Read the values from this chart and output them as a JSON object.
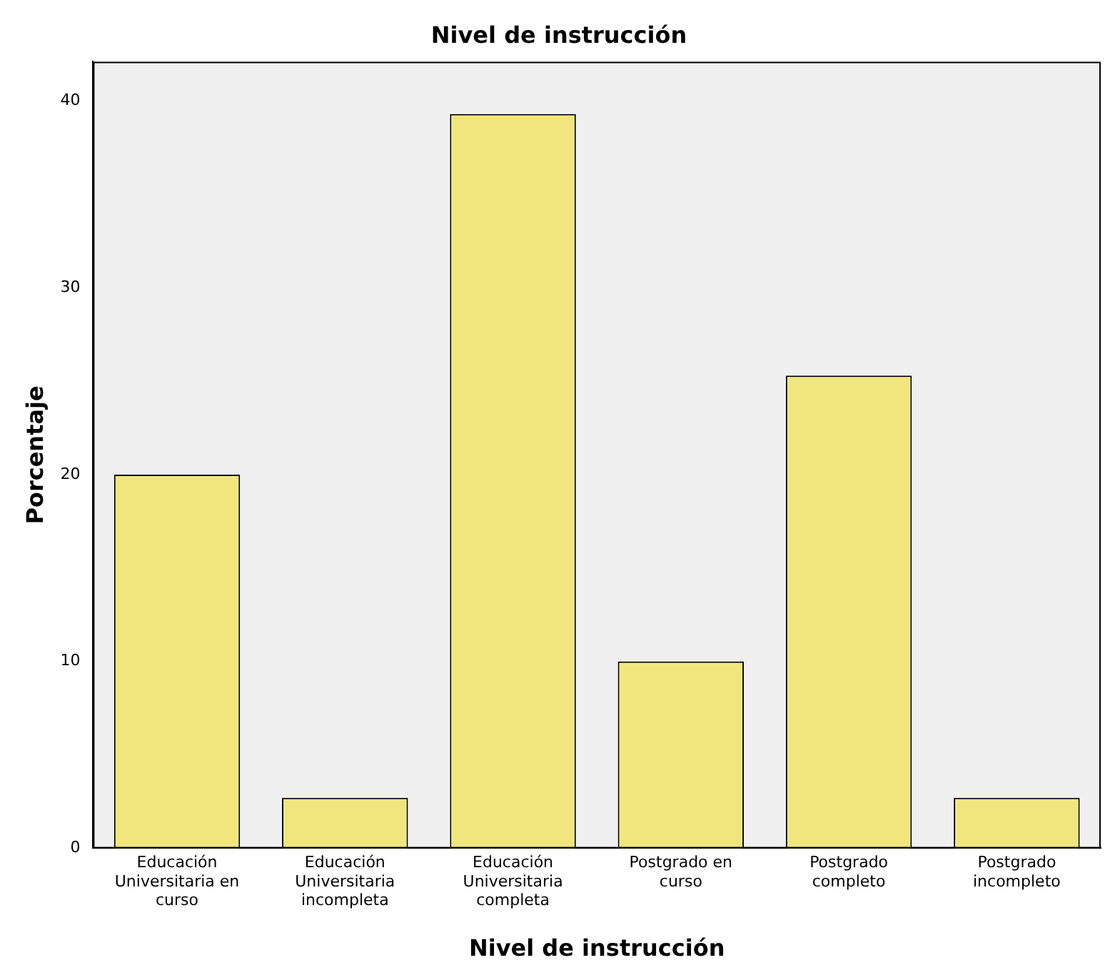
{
  "chart_data": {
    "type": "bar",
    "title": "Nivel de instrucción",
    "xlabel": "Nivel de instrucción",
    "ylabel": "Porcentaje",
    "categories": [
      "Educación Universitaria en curso",
      "Educación Universitaria incompleta",
      "Educación Universitaria completa",
      "Postgrado en curso",
      "Postgrado completo",
      "Postgrado incompleto"
    ],
    "values": [
      20,
      2.7,
      39.3,
      10,
      25.3,
      2.7
    ],
    "color": "#f1e67e",
    "ylim": [
      0,
      42.1
    ],
    "yticks": [
      0,
      10,
      20,
      30,
      40
    ],
    "grid": false
  }
}
